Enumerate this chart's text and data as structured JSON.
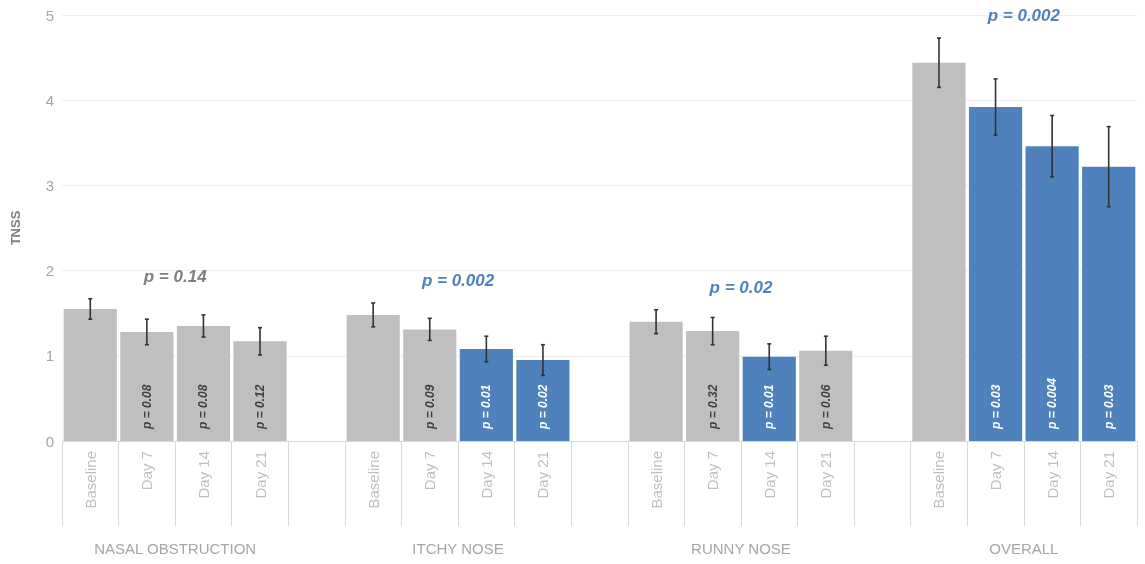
{
  "chart_data": {
    "type": "bar",
    "ylabel": "TNSS",
    "categories": [
      "Baseline",
      "Day 7",
      "Day 14",
      "Day 21",
      null,
      "Baseline",
      "Day 7",
      "Day 14",
      "Day 21",
      null,
      "Baseline",
      "Day 7",
      "Day 14",
      "Day 21",
      null,
      "Baseline",
      "Day 7",
      "Day 14",
      "Day 21"
    ],
    "values": [
      1.55,
      1.28,
      1.35,
      1.17,
      null,
      1.48,
      1.31,
      1.08,
      0.95,
      null,
      1.4,
      1.29,
      0.99,
      1.06,
      null,
      4.44,
      3.92,
      3.46,
      3.22
    ],
    "errors": [
      0.12,
      0.15,
      0.13,
      0.16,
      null,
      0.14,
      0.13,
      0.15,
      0.18,
      null,
      0.14,
      0.16,
      0.15,
      0.17,
      null,
      0.29,
      0.33,
      0.36,
      0.47
    ],
    "colors": [
      "#bfbfbf",
      "#bfbfbf",
      "#bfbfbf",
      "#bfbfbf",
      null,
      "#bfbfbf",
      "#bfbfbf",
      "#4f81bd",
      "#4f81bd",
      null,
      "#bfbfbf",
      "#bfbfbf",
      "#4f81bd",
      "#bfbfbf",
      null,
      "#bfbfbf",
      "#4f81bd",
      "#4f81bd",
      "#4f81bd"
    ],
    "annotations": [
      "NASAL OBSTRUCTION",
      "p = 0.14",
      "p = 0.08",
      "p = 0.08",
      "p = 0.12",
      "ITCHY NOSE",
      "p = 0.002",
      "p = 0.09",
      "p = 0.01",
      "p = 0.02",
      "RUNNY NOSE",
      "p = 0.02",
      "p = 0.32",
      "p = 0.01",
      "p = 0.06",
      "OVERALL",
      "p = 0.002",
      "p = 0.03",
      "p = 0.004",
      "p = 0.03"
    ],
    "ylim": [
      0,
      5
    ],
    "yticks": [
      0,
      1,
      2,
      3,
      4,
      5
    ],
    "grid": true
  }
}
